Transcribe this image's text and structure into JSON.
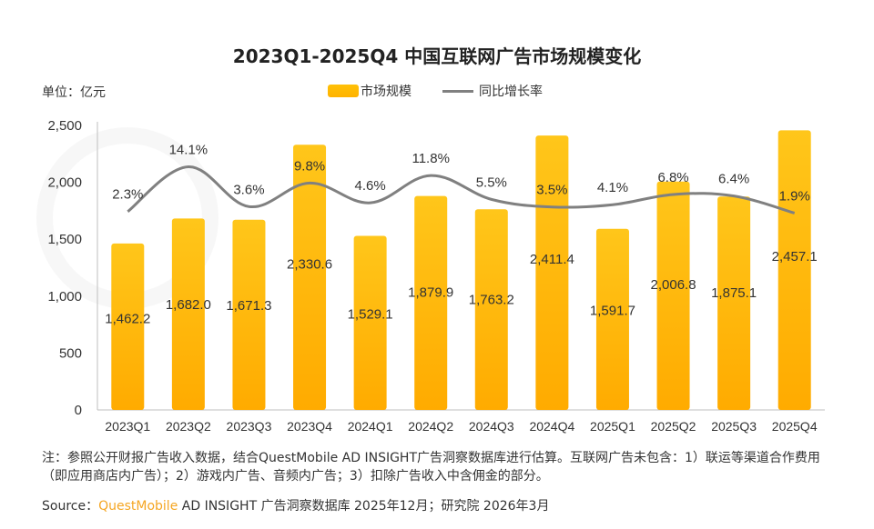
{
  "title": "2023Q1-2025Q4 中国互联网广告市场规模变化",
  "unit_label": "单位：亿元",
  "legend": {
    "bar": "市场规模",
    "line": "同比增长率"
  },
  "colors": {
    "bar_top": "#ffc61a",
    "bar_bottom": "#ffab00",
    "line": "#808080",
    "axis": "#bfbfbf",
    "brand": "#f5a623"
  },
  "chart_data": {
    "type": "bar",
    "categories": [
      "2023Q1",
      "2023Q2",
      "2023Q3",
      "2023Q4",
      "2024Q1",
      "2024Q2",
      "2024Q3",
      "2024Q4",
      "2025Q1",
      "2025Q2",
      "2025Q3",
      "2025Q4"
    ],
    "series": [
      {
        "name": "市场规模",
        "type": "bar",
        "values": [
          1462.2,
          1682.0,
          1671.3,
          2330.6,
          1529.1,
          1879.9,
          1763.2,
          2411.4,
          1591.7,
          2006.8,
          1875.1,
          2457.1
        ],
        "labels": [
          "1,462.2",
          "1,682.0",
          "1,671.3",
          "2,330.6",
          "1,529.1",
          "1,879.9",
          "1,763.2",
          "2,411.4",
          "1,591.7",
          "2,006.8",
          "1,875.1",
          "2,457.1"
        ]
      },
      {
        "name": "同比增长率",
        "type": "line",
        "values": [
          2.3,
          14.1,
          3.6,
          9.8,
          4.6,
          11.8,
          5.5,
          3.5,
          4.1,
          6.8,
          6.4,
          1.9
        ],
        "labels": [
          "2.3%",
          "14.1%",
          "3.6%",
          "9.8%",
          "4.6%",
          "11.8%",
          "5.5%",
          "3.5%",
          "4.1%",
          "6.8%",
          "6.4%",
          "1.9%"
        ]
      }
    ],
    "yticks": [
      "0",
      "500",
      "1,000",
      "1,500",
      "2,000",
      "2,500"
    ],
    "ylim": [
      0,
      2500
    ],
    "line_scale": [
      -50,
      25
    ],
    "grid": false
  },
  "note": "注：参照公开财报广告收入数据，结合QuestMobile AD INSIGHT广告洞察数据库进行估算。互联网广告未包含：1）联运等渠道合作费用（即应用商店内广告）；2）游戏内广告、音频内广告；3）扣除广告收入中含佣金的部分。",
  "source": {
    "prefix": "Source：",
    "brand": "QuestMobile",
    "rest": " AD INSIGHT 广告洞察数据库 2025年12月；研究院 2026年3月"
  }
}
